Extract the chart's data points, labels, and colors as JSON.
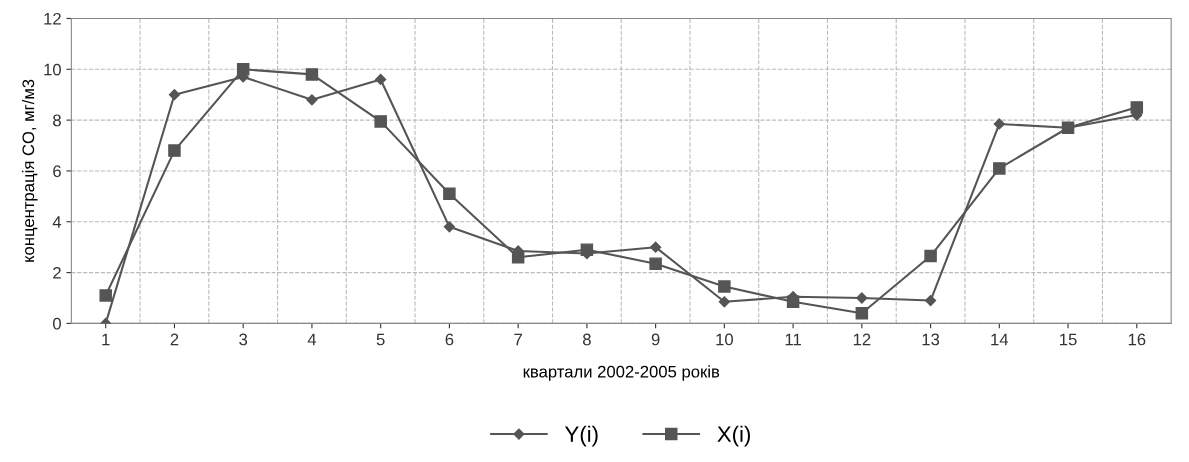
{
  "chart_data": {
    "type": "line",
    "xlabel": "квартали 2002-2005 років",
    "ylabel": "концентрація CO, мг/м3",
    "categories": [
      "1",
      "2",
      "3",
      "4",
      "5",
      "6",
      "7",
      "8",
      "9",
      "10",
      "11",
      "12",
      "13",
      "14",
      "15",
      "16"
    ],
    "series": [
      {
        "name": "Y(i)",
        "color": "#555555",
        "marker": "diamond",
        "values": [
          0,
          9.0,
          9.7,
          8.8,
          9.6,
          3.8,
          2.85,
          2.75,
          3.0,
          0.85,
          1.05,
          1.0,
          0.9,
          7.85,
          7.7,
          8.2
        ]
      },
      {
        "name": "X(i)",
        "color": "#555555",
        "marker": "square",
        "values": [
          1.1,
          6.8,
          10.0,
          9.8,
          7.95,
          5.1,
          2.6,
          2.9,
          2.35,
          1.45,
          0.85,
          0.4,
          2.65,
          6.1,
          7.7,
          8.5
        ]
      }
    ],
    "ylim": [
      0,
      12
    ],
    "yticks": [
      0,
      2,
      4,
      6,
      8,
      10,
      12
    ],
    "grid": true,
    "legend": "bottom",
    "line_style": "solid"
  }
}
